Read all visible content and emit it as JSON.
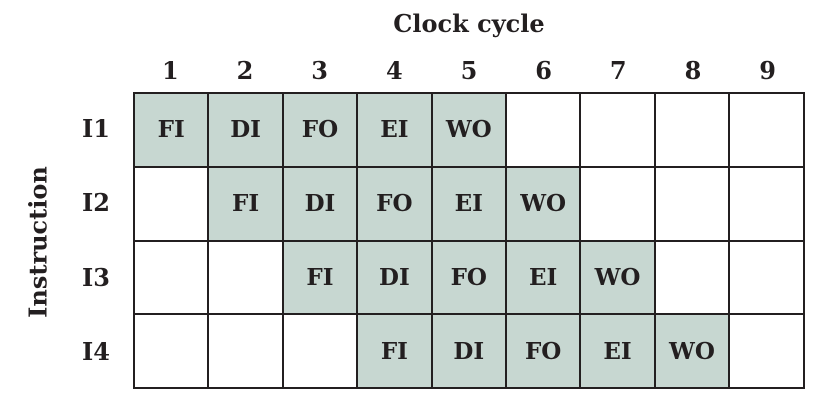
{
  "x_axis_title": "Clock cycle",
  "y_axis_title": "Instruction",
  "fill_color": "#c7d7d1",
  "clock_cycles": [
    "1",
    "2",
    "3",
    "4",
    "5",
    "6",
    "7",
    "8",
    "9"
  ],
  "rows": [
    {
      "label": "I1",
      "cells": [
        "FI",
        "DI",
        "FO",
        "EI",
        "WO",
        "",
        "",
        "",
        ""
      ]
    },
    {
      "label": "I2",
      "cells": [
        "",
        "FI",
        "DI",
        "FO",
        "EI",
        "WO",
        "",
        "",
        ""
      ]
    },
    {
      "label": "I3",
      "cells": [
        "",
        "",
        "FI",
        "DI",
        "FO",
        "EI",
        "WO",
        "",
        ""
      ]
    },
    {
      "label": "I4",
      "cells": [
        "",
        "",
        "",
        "FI",
        "DI",
        "FO",
        "EI",
        "WO",
        ""
      ]
    }
  ]
}
